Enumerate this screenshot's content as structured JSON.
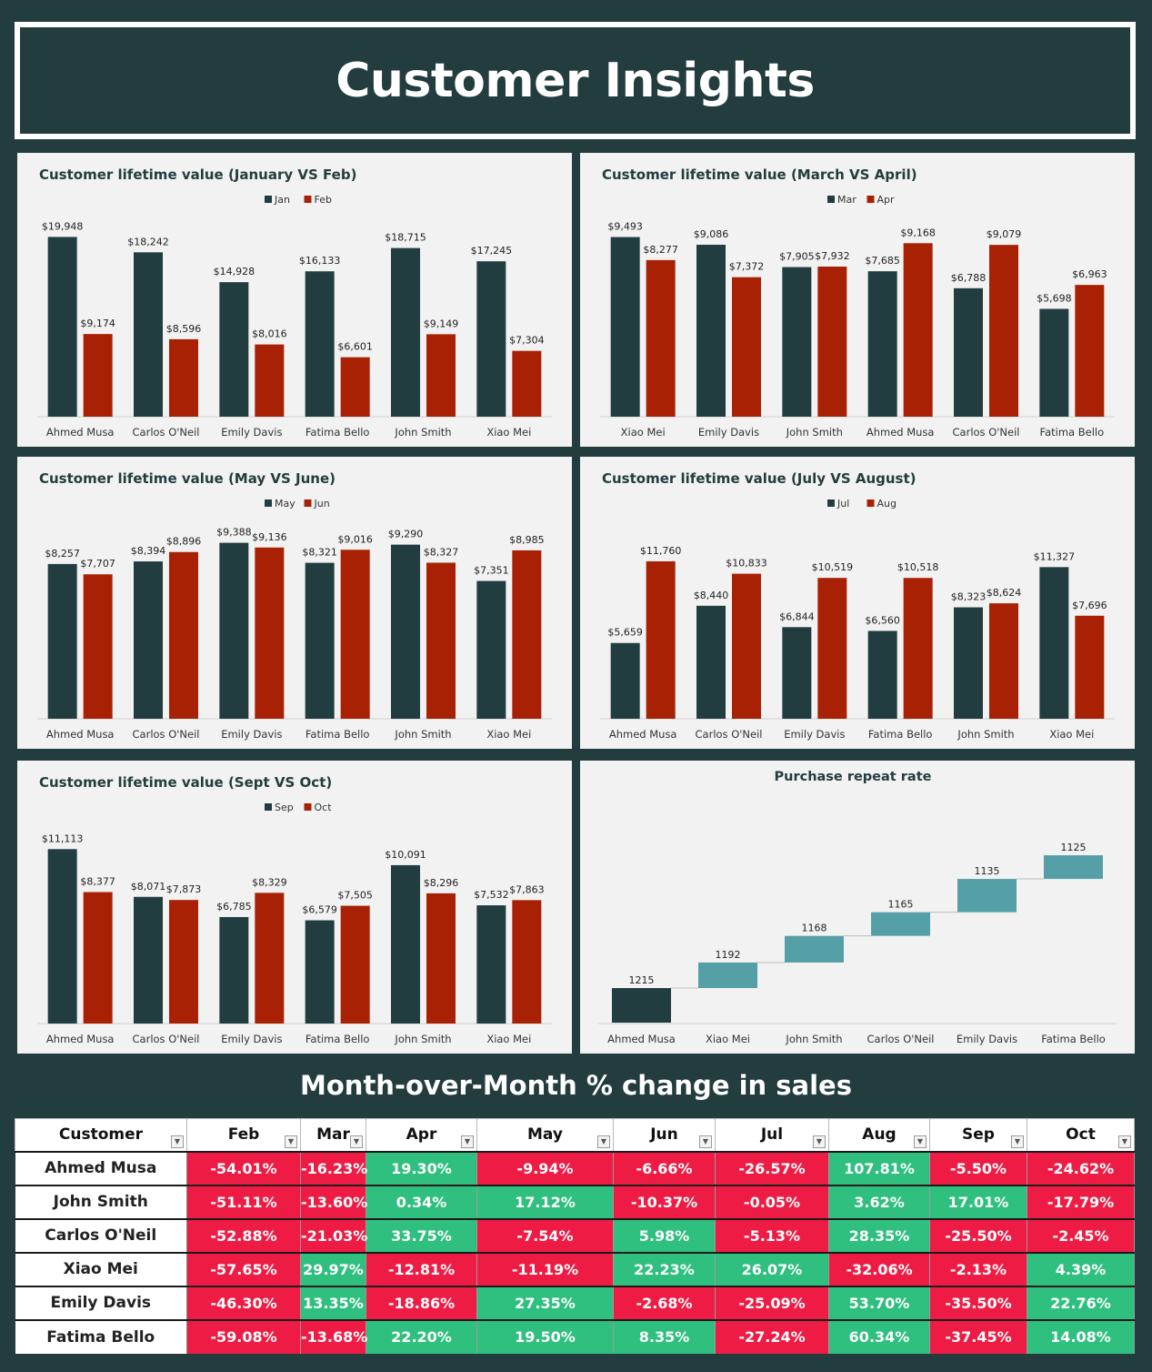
{
  "page_title": "Customer Insights",
  "colors": {
    "dark": "#223d40",
    "red": "#a82105",
    "teal": "#55a0a6",
    "neg": "#ee1c44",
    "pos": "#2fbf7f"
  },
  "chart_data": [
    {
      "type": "bar",
      "title": "Customer lifetime value (January VS Feb)",
      "categories": [
        "Ahmed Musa",
        "Carlos O'Neil",
        "Emily Davis",
        "Fatima Bello",
        "John Smith",
        "Xiao Mei"
      ],
      "series": [
        {
          "name": "Jan",
          "values": [
            19948,
            18242,
            14928,
            16133,
            18715,
            17245
          ],
          "labels": [
            "$19,948",
            "$18,242",
            "$14,928",
            "$16,133",
            "$18,715",
            "$17,245"
          ]
        },
        {
          "name": "Feb",
          "values": [
            9174,
            8596,
            8016,
            6601,
            9149,
            7304
          ],
          "labels": [
            "$9,174",
            "$8,596",
            "$8,016",
            "$6,601",
            "$9,149",
            "$7,304"
          ]
        }
      ],
      "ylim": [
        0,
        21000
      ],
      "legend": "top"
    },
    {
      "type": "bar",
      "title": "Customer lifetime value (March VS April)",
      "categories": [
        "Xiao Mei",
        "Emily Davis",
        "John Smith",
        "Ahmed Musa",
        "Carlos O'Neil",
        "Fatima Bello"
      ],
      "series": [
        {
          "name": "Mar",
          "values": [
            9493,
            9086,
            7905,
            7685,
            6788,
            5698
          ],
          "labels": [
            "$9,493",
            "$9,086",
            "$7,905",
            "$7,685",
            "$6,788",
            "$5,698"
          ]
        },
        {
          "name": "Apr",
          "values": [
            8277,
            7372,
            7932,
            9168,
            9079,
            6963
          ],
          "labels": [
            "$8,277",
            "$7,372",
            "$7,932",
            "$9,168",
            "$9,079",
            "$6,963"
          ]
        }
      ],
      "ylim": [
        0,
        10000
      ],
      "legend": "top"
    },
    {
      "type": "bar",
      "title": "Customer lifetime value (May VS June)",
      "categories": [
        "Ahmed Musa",
        "Carlos O'Neil",
        "Emily Davis",
        "Fatima Bello",
        "John Smith",
        "Xiao Mei"
      ],
      "series": [
        {
          "name": "May",
          "values": [
            8257,
            8394,
            9388,
            8321,
            9290,
            7351
          ],
          "labels": [
            "$8,257",
            "$8,394",
            "$9,388",
            "$8,321",
            "$9,290",
            "$7,351"
          ]
        },
        {
          "name": "Jun",
          "values": [
            7707,
            8896,
            9136,
            9016,
            8327,
            8985
          ],
          "labels": [
            "$7,707",
            "$8,896",
            "$9,136",
            "$9,016",
            "$8,327",
            "$8,985"
          ]
        }
      ],
      "ylim": [
        0,
        10000
      ],
      "legend": "top"
    },
    {
      "type": "bar",
      "title": "Customer lifetime value (July VS August)",
      "categories": [
        "Ahmed Musa",
        "Carlos O'Neil",
        "Emily Davis",
        "Fatima Bello",
        "John Smith",
        "Xiao Mei"
      ],
      "series": [
        {
          "name": "Jul",
          "values": [
            5659,
            8440,
            6844,
            6560,
            8323,
            11327
          ],
          "labels": [
            "$5,659",
            "$8,440",
            "$6,844",
            "$6,560",
            "$8,323",
            "$11,327"
          ]
        },
        {
          "name": "Aug",
          "values": [
            11760,
            10833,
            10519,
            10518,
            8624,
            7696
          ],
          "labels": [
            "$11,760",
            "$10,833",
            "$10,519",
            "$10,518",
            "$8,624",
            "$7,696"
          ]
        }
      ],
      "ylim": [
        0,
        14000
      ],
      "legend": "top"
    },
    {
      "type": "bar",
      "title": "Customer lifetime value (Sept VS Oct)",
      "categories": [
        "Ahmed Musa",
        "Carlos O'Neil",
        "Emily Davis",
        "Fatima Bello",
        "John Smith",
        "Xiao Mei"
      ],
      "series": [
        {
          "name": "Sep",
          "values": [
            11113,
            8071,
            6785,
            6579,
            10091,
            7532
          ],
          "labels": [
            "$11,113",
            "$8,071",
            "$6,785",
            "$6,579",
            "$10,091",
            "$7,532"
          ]
        },
        {
          "name": "Oct",
          "values": [
            8377,
            7873,
            8329,
            7505,
            8296,
            7863
          ],
          "labels": [
            "$8,377",
            "$7,873",
            "$8,329",
            "$7,505",
            "$8,296",
            "$7,863"
          ]
        }
      ],
      "ylim": [
        0,
        12000
      ],
      "legend": "top"
    },
    {
      "type": "waterfall",
      "title": "Purchase repeat rate",
      "categories": [
        "Ahmed Musa",
        "Xiao Mei",
        "John Smith",
        "Carlos O'Neil",
        "Emily Davis",
        "Fatima Bello"
      ],
      "values": [
        1215,
        1192,
        1168,
        1165,
        1135,
        1125
      ],
      "labels": [
        "1215",
        "1192",
        "1168",
        "1165",
        "1135",
        "1125"
      ]
    }
  ],
  "mom": {
    "title": "Month-over-Month % change in sales",
    "headers": [
      "Customer",
      "Feb",
      "Mar",
      "Apr",
      "May",
      "Jun",
      "Jul",
      "Aug",
      "Sep",
      "Oct"
    ],
    "rows": [
      {
        "name": "Ahmed Musa",
        "values": [
          "-54.01%",
          "-16.23%",
          "19.30%",
          "-9.94%",
          "-6.66%",
          "-26.57%",
          "107.81%",
          "-5.50%",
          "-24.62%"
        ]
      },
      {
        "name": "John Smith",
        "values": [
          "-51.11%",
          "-13.60%",
          "0.34%",
          "17.12%",
          "-10.37%",
          "-0.05%",
          "3.62%",
          "17.01%",
          "-17.79%"
        ]
      },
      {
        "name": "Carlos O'Neil",
        "values": [
          "-52.88%",
          "-21.03%",
          "33.75%",
          "-7.54%",
          "5.98%",
          "-5.13%",
          "28.35%",
          "-25.50%",
          "-2.45%"
        ]
      },
      {
        "name": "Xiao Mei",
        "values": [
          "-57.65%",
          "29.97%",
          "-12.81%",
          "-11.19%",
          "22.23%",
          "26.07%",
          "-32.06%",
          "-2.13%",
          "4.39%"
        ]
      },
      {
        "name": "Emily Davis",
        "values": [
          "-46.30%",
          "13.35%",
          "-18.86%",
          "27.35%",
          "-2.68%",
          "-25.09%",
          "53.70%",
          "-35.50%",
          "22.76%"
        ]
      },
      {
        "name": "Fatima Bello",
        "values": [
          "-59.08%",
          "-13.68%",
          "22.20%",
          "19.50%",
          "8.35%",
          "-27.24%",
          "60.34%",
          "-37.45%",
          "14.08%"
        ]
      }
    ]
  }
}
